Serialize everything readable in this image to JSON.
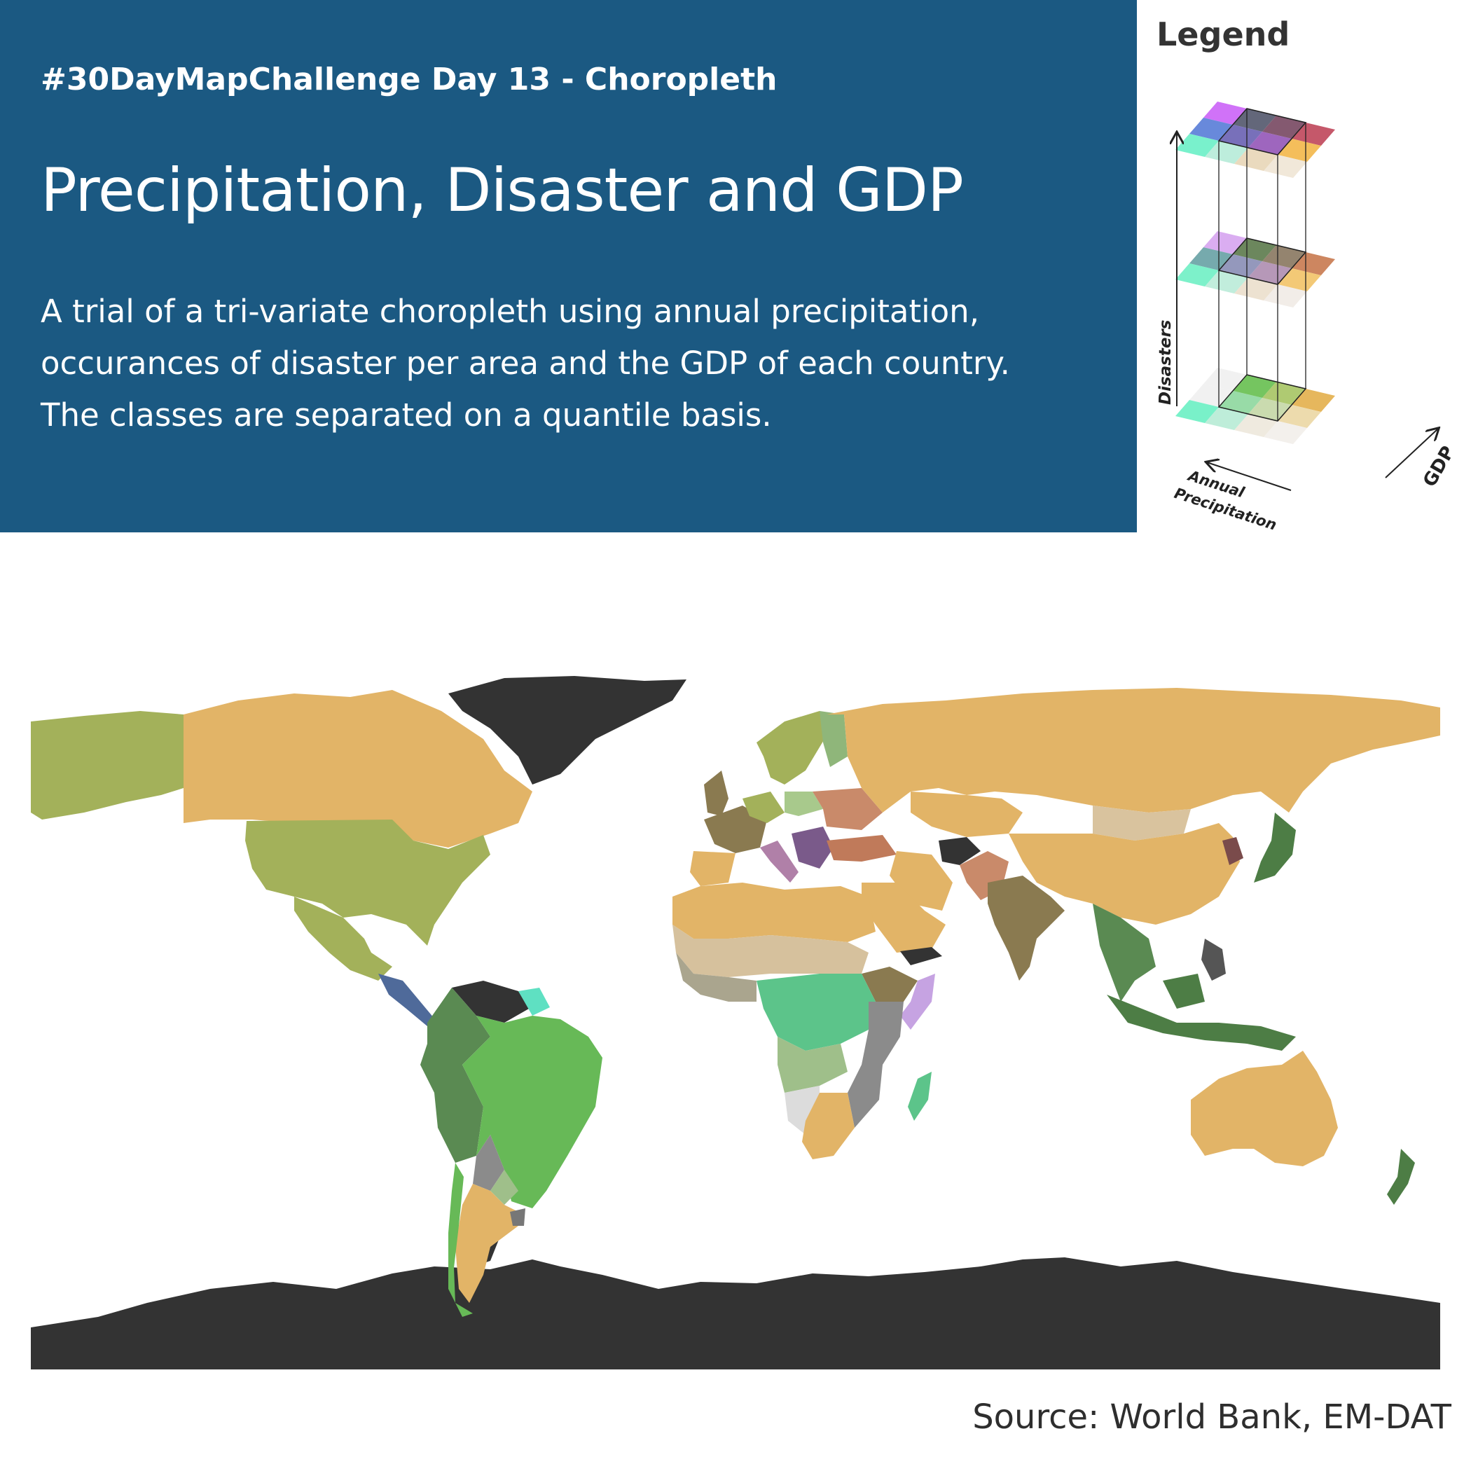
{
  "header": {
    "challenge": "#30DayMapChallenge Day 13 - Choropleth",
    "title": "Precipitation, Disaster and GDP",
    "description_lines": [
      "A trial of a tri-variate choropleth using annual precipitation,",
      "occurances of disaster per area and the GDP of each country.",
      "The classes are separated on a quantile basis."
    ],
    "background_color": "#1b5982"
  },
  "legend": {
    "title": "Legend",
    "axis_disasters": "Disasters",
    "axis_gdp": "GDP",
    "axis_precip_line1": "Annual",
    "axis_precip_line2": "Precipitation",
    "layers": [
      {
        "level": "high disasters",
        "cells": [
          [
            "#cc66f7",
            "#565a6f",
            "#7a4b64",
            "#c04a5d"
          ],
          [
            "#5b7fd8",
            "#6c64b4",
            "#9659b8",
            "#f3b94d"
          ],
          [
            "#6ef0c8",
            "#b7ecd9",
            "#e8d7b8",
            "#f0e6d6"
          ]
        ]
      },
      {
        "level": "medium disasters",
        "cells": [
          [
            "#d7a6f0",
            "#5f7d4f",
            "#8b7a63",
            "#c97c52"
          ],
          [
            "#6aa3a6",
            "#8b8fb6",
            "#b08fb2",
            "#f2c46a"
          ],
          [
            "#72f0c6",
            "#bcecd9",
            "#ebe0cd",
            "#f1ece6"
          ]
        ]
      },
      {
        "level": "low disasters",
        "cells": [
          [
            "#f0f0f0",
            "#69c052",
            "#a8c566",
            "#e4b14f"
          ],
          [
            "#f0f0f0",
            "#8fd8a0",
            "#c5d8a8",
            "#ecd8a6"
          ],
          [
            "#6ef0c4",
            "#b9ecd6",
            "#eee8dc",
            "#f2efea"
          ]
        ]
      }
    ]
  },
  "map": {
    "antarctica_color": "#333333",
    "country_colors": {
      "canada": "#e2b467",
      "usa": "#a3b15a",
      "greenland": "#333333",
      "mexico": "#a3b15a",
      "central_america": "#4f6a9a",
      "venezuela": "#333333",
      "colombia_peru": "#5a8a52",
      "brazil": "#67b957",
      "bolivia": "#8b8b8b",
      "argentina": "#e2b467",
      "chile": "#67b957",
      "russia": "#e2b467",
      "mongolia": "#d9c39e",
      "china": "#e2b467",
      "india": "#8a7a50",
      "australia": "#e2b467",
      "indonesia": "#4d7d45",
      "north_africa": "#e2b467",
      "sahara_mid": "#d6c19d",
      "west_africa": "#aaa58e",
      "central_africa": "#5cc48a",
      "southern_africa": "#e2b467",
      "namibia": "#dcdcdc",
      "madagascar": "#5cc48a",
      "europe_west": "#8a7a50",
      "europe_central": "#a3b15a",
      "scandinavia": "#a3b15a",
      "iran_region": "#e2b467",
      "afghanistan": "#333333",
      "pakistan": "#c98a6a",
      "saudi": "#e2b467",
      "yemen": "#333333",
      "ethiopia": "#8a7a50",
      "somalia": "#c6a3e2",
      "new_zealand": "#4d7d45",
      "japan": "#4d7d45"
    }
  },
  "source": "Source: World Bank, EM-DAT"
}
